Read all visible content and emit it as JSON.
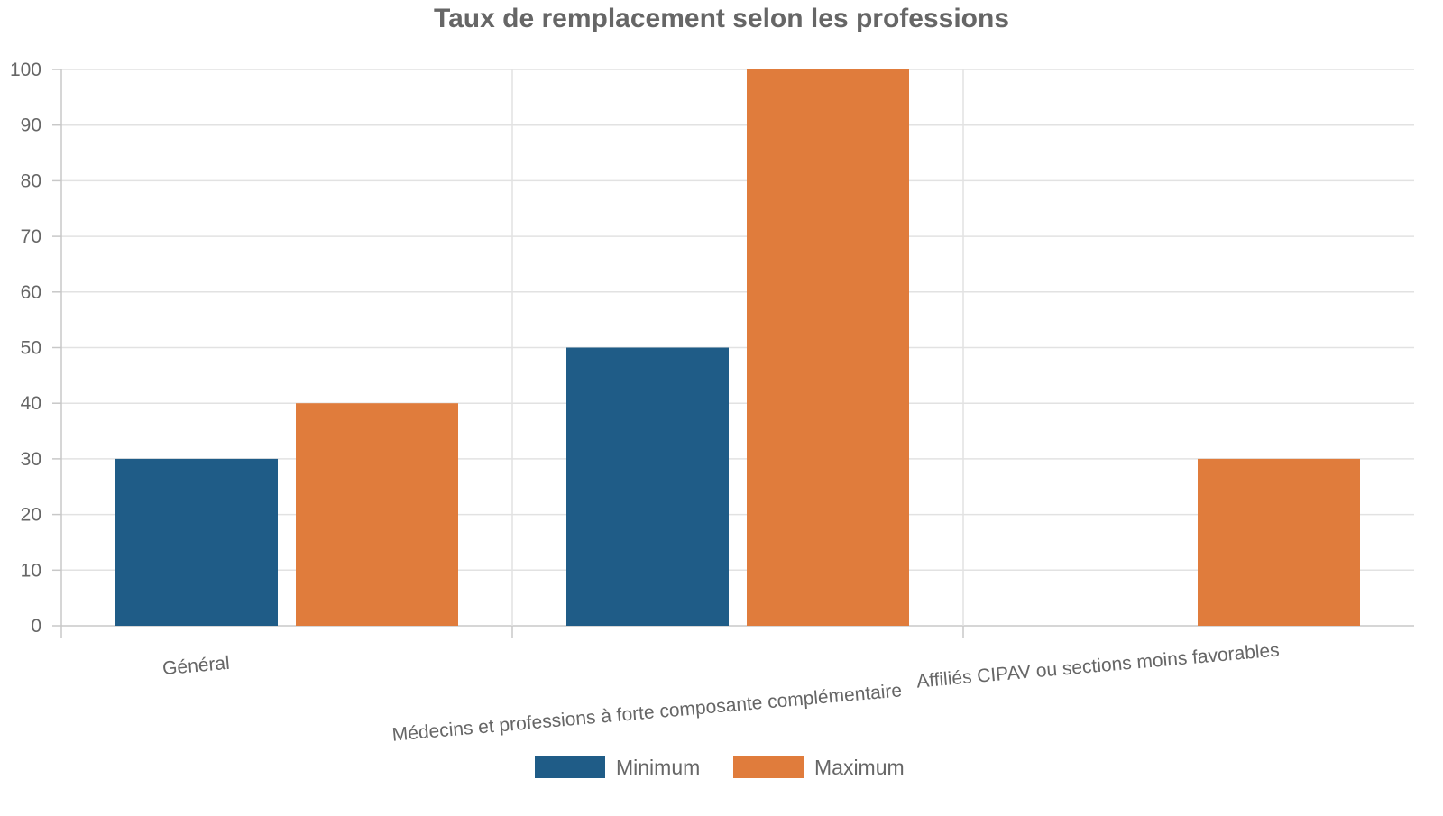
{
  "chart_data": {
    "type": "bar",
    "title": "Taux de remplacement selon les professions",
    "xlabel": "",
    "ylabel": "",
    "ylim": [
      0,
      100
    ],
    "yticks": [
      0,
      10,
      20,
      30,
      40,
      50,
      60,
      70,
      80,
      90,
      100
    ],
    "grid": true,
    "legend_position": "bottom",
    "categories": [
      "Général",
      "Médecins et professions à forte composante complémentaire",
      "Affiliés CIPAV ou sections moins favorables"
    ],
    "series": [
      {
        "name": "Minimum",
        "color": "#1f5c87",
        "values": [
          30,
          50,
          0
        ]
      },
      {
        "name": "Maximum",
        "color": "#e07c3c",
        "values": [
          40,
          100,
          30
        ]
      }
    ]
  }
}
